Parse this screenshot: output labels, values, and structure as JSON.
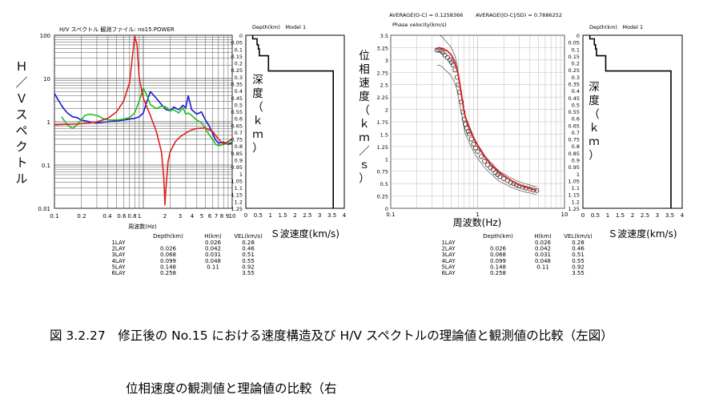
{
  "caption": {
    "line1": "図 3.2.27　修正後の No.15 における速度構造及び H/V スペクトルの理論値と観測値の比較（左図）",
    "line2": "位相速度の観測値と理論値の比較（右"
  },
  "chart_data": [
    {
      "type": "line",
      "title": "H/V スペクトル 観測ファイル: no15.POWER",
      "xlabel": "周波数(Hz)",
      "ylabel": "Ｈ／Ｖスペクトル",
      "xscale": "log",
      "yscale": "log",
      "xlim": [
        0.1,
        10
      ],
      "ylim": [
        0.01,
        100
      ],
      "x_ticks": [
        "0.1",
        "0.2",
        "0.4",
        "0.6",
        "0.8",
        "1",
        "2",
        "3",
        "4",
        "5",
        "6",
        "7",
        "8",
        "9",
        "10"
      ],
      "y_ticks": [
        "0.01",
        "0.1",
        "1",
        "10",
        "100"
      ],
      "grid": true,
      "series": [
        {
          "color": "#1a1acc",
          "x": [
            0.1,
            0.11,
            0.12,
            0.13,
            0.14,
            0.16,
            0.18,
            0.2,
            0.25,
            0.3,
            0.35,
            0.4,
            0.5,
            0.6,
            0.7,
            0.8,
            0.9,
            1.0,
            1.1,
            1.2,
            1.4,
            1.6,
            1.8,
            2.0,
            2.2,
            2.5,
            2.8,
            3.0,
            3.2,
            3.5,
            4.0,
            4.5,
            5.0,
            5.5,
            6.0,
            6.5,
            7.0,
            8.0,
            9.0,
            10.0
          ],
          "y": [
            4.5,
            3.2,
            2.4,
            1.9,
            1.6,
            1.3,
            1.25,
            1.1,
            1.0,
            0.95,
            0.98,
            1.0,
            1.05,
            1.1,
            1.15,
            1.2,
            1.3,
            1.6,
            3.0,
            5.0,
            3.5,
            2.5,
            1.9,
            1.8,
            2.2,
            1.9,
            2.4,
            2.1,
            4.0,
            1.9,
            1.5,
            1.7,
            1.1,
            0.8,
            0.55,
            0.38,
            0.32,
            0.34,
            0.3,
            0.32
          ]
        },
        {
          "color": "#22bb22",
          "x": [
            0.12,
            0.14,
            0.16,
            0.18,
            0.2,
            0.22,
            0.25,
            0.3,
            0.35,
            0.4,
            0.5,
            0.6,
            0.7,
            0.8,
            0.9,
            1.0,
            1.1,
            1.2,
            1.4,
            1.6,
            1.8,
            2.0,
            2.2,
            2.5,
            2.8,
            3.0,
            3.2,
            3.5,
            4.0,
            4.5,
            5.0,
            5.5,
            6.0,
            6.5,
            7.0,
            8.0,
            9.0,
            10.0
          ],
          "y": [
            1.3,
            0.85,
            0.7,
            0.85,
            1.1,
            1.4,
            1.5,
            1.4,
            1.2,
            1.1,
            1.1,
            1.15,
            1.25,
            1.6,
            3.0,
            6.0,
            4.0,
            2.5,
            2.0,
            2.3,
            2.2,
            1.8,
            1.9,
            1.6,
            2.1,
            1.5,
            1.6,
            1.4,
            1.1,
            0.95,
            0.7,
            0.5,
            0.4,
            0.3,
            0.28,
            0.3,
            0.32,
            0.34
          ]
        },
        {
          "color": "#e02020",
          "x": [
            0.1,
            0.2,
            0.3,
            0.4,
            0.5,
            0.6,
            0.7,
            0.8,
            0.85,
            0.9,
            1.0,
            1.2,
            1.4,
            1.6,
            1.7,
            1.75,
            1.8,
            1.9,
            2.0,
            2.3,
            2.6,
            3.0,
            3.5,
            4.0,
            5.0,
            6.0,
            7.0,
            8.0,
            9.0,
            10.0
          ],
          "y": [
            0.85,
            0.9,
            1.0,
            1.2,
            1.7,
            3.0,
            8.0,
            95,
            60,
            10,
            3.5,
            1.4,
            0.6,
            0.2,
            0.05,
            0.012,
            0.03,
            0.12,
            0.2,
            0.35,
            0.45,
            0.55,
            0.65,
            0.7,
            0.72,
            0.6,
            0.4,
            0.3,
            0.35,
            0.4
          ]
        }
      ]
    },
    {
      "type": "line",
      "title": "Depth(km)　Model 1",
      "ylabel": "深度（ｋｍ）",
      "xlabel": "Ｓ波速度(km/s)",
      "xlim": [
        0,
        4
      ],
      "ylim": [
        1.25,
        0
      ],
      "x_ticks": [
        "0",
        "0.5",
        "1",
        "1.5",
        "2",
        "2.5",
        "3",
        "3.5",
        "4"
      ],
      "y_ticks": [
        "0",
        "0.05",
        "0.1",
        "0.15",
        "0.2",
        "0.25",
        "0.3",
        "0.35",
        "0.4",
        "0.45",
        "0.5",
        "0.55",
        "0.6",
        "0.65",
        "0.7",
        "0.75",
        "0.8",
        "0.85",
        "0.9",
        "0.95",
        "1",
        "1.05",
        "1.1",
        "1.15",
        "1.2",
        "1.25"
      ],
      "series": [
        {
          "name": "Model 1",
          "color": "#000000",
          "velocity": [
            0.28,
            0.46,
            0.51,
            0.55,
            0.92,
            3.55
          ],
          "depth_top": [
            0,
            0.026,
            0.068,
            0.099,
            0.148,
            0.258
          ]
        }
      ]
    },
    {
      "type": "scatter",
      "annotations": [
        "AVERAGE(O-C) = 0.1258366",
        "AVERAGE(|O-C|/SD) = 0.7886252"
      ],
      "title": "Phase velocity(km/s)",
      "xlabel": "周波数(Hz)",
      "ylabel": "位相速度（ｋｍ／ｓ）",
      "xscale": "log",
      "xlim": [
        0.1,
        10
      ],
      "ylim": [
        0,
        3.5
      ],
      "x_ticks": [
        "0.1",
        "1",
        "10"
      ],
      "y_ticks": [
        "0",
        "0.25",
        "0.5",
        "0.75",
        "1",
        "1.25",
        "1.5",
        "1.75",
        "2",
        "2.25",
        "2.5",
        "2.75",
        "3",
        "3.25",
        "3.5"
      ],
      "grid": true,
      "series": [
        {
          "kind": "observed",
          "color": "#333333",
          "x": [
            0.34,
            0.36,
            0.38,
            0.4,
            0.42,
            0.45,
            0.48,
            0.5,
            0.52,
            0.55,
            0.58,
            0.6,
            0.62,
            0.65,
            0.68,
            0.7,
            0.72,
            0.75,
            0.78,
            0.8,
            0.85,
            0.9,
            0.95,
            1.0,
            1.1,
            1.2,
            1.3,
            1.4,
            1.5,
            1.6,
            1.7,
            1.8,
            2.0,
            2.2,
            2.4,
            2.6,
            2.8,
            3.0,
            3.3,
            3.6,
            4.0,
            4.4,
            4.8
          ],
          "y": [
            3.2,
            3.2,
            3.18,
            3.15,
            3.1,
            3.05,
            3.0,
            2.95,
            2.9,
            2.8,
            2.65,
            2.5,
            2.35,
            2.15,
            1.95,
            1.8,
            1.7,
            1.62,
            1.55,
            1.5,
            1.4,
            1.3,
            1.22,
            1.15,
            1.05,
            0.95,
            0.88,
            0.82,
            0.78,
            0.72,
            0.68,
            0.64,
            0.6,
            0.56,
            0.52,
            0.5,
            0.47,
            0.45,
            0.43,
            0.41,
            0.39,
            0.37,
            0.36
          ]
        },
        {
          "kind": "theoretical",
          "color": "#e02020",
          "x": [
            0.33,
            0.36,
            0.4,
            0.45,
            0.5,
            0.55,
            0.6,
            0.65,
            0.7,
            0.75,
            0.8,
            0.85,
            0.9,
            1.0,
            1.1,
            1.2,
            1.4,
            1.6,
            1.8,
            2.0,
            2.5,
            3.0,
            3.5,
            4.0,
            4.8
          ],
          "y": [
            3.22,
            3.25,
            3.23,
            3.18,
            3.1,
            2.95,
            2.7,
            2.3,
            1.95,
            1.75,
            1.62,
            1.52,
            1.42,
            1.28,
            1.15,
            1.05,
            0.9,
            0.8,
            0.72,
            0.66,
            0.55,
            0.48,
            0.43,
            0.4,
            0.36
          ]
        }
      ]
    },
    {
      "type": "line",
      "title": "Depth(km)　Model 1",
      "ylabel": "深度（ｋｍ）",
      "xlabel": "Ｓ波速度(km/s)",
      "xlim": [
        0,
        4
      ],
      "ylim": [
        1.25,
        0
      ],
      "x_ticks": [
        "0",
        "0.5",
        "1",
        "1.5",
        "2",
        "2.5",
        "3",
        "3.5",
        "4"
      ],
      "y_ticks": [
        "0",
        "0.05",
        "0.1",
        "0.15",
        "0.2",
        "0.25",
        "0.3",
        "0.35",
        "0.4",
        "0.45",
        "0.5",
        "0.55",
        "0.6",
        "0.65",
        "0.7",
        "0.75",
        "0.8",
        "0.85",
        "0.9",
        "0.95",
        "1",
        "1.05",
        "1.1",
        "1.15",
        "1.2",
        "1.25"
      ],
      "series": [
        {
          "name": "Model 1",
          "color": "#000000",
          "velocity": [
            0.28,
            0.46,
            0.51,
            0.55,
            0.92,
            3.55
          ],
          "depth_top": [
            0,
            0.026,
            0.068,
            0.099,
            0.148,
            0.258
          ]
        }
      ]
    }
  ],
  "layer_tables": [
    {
      "headers": [
        "",
        "Depth(km)",
        "H(km)",
        "VEL(km/s)"
      ],
      "rows": [
        [
          "1LAY",
          "",
          "0.026",
          "0.28"
        ],
        [
          "2LAY",
          "0.026",
          "0.042",
          "0.46"
        ],
        [
          "3LAY",
          "0.068",
          "0.031",
          "0.51"
        ],
        [
          "4LAY",
          "0.099",
          "0.048",
          "0.55"
        ],
        [
          "5LAY",
          "0.148",
          "0.11",
          "0.92"
        ],
        [
          "6LAY",
          "0.258",
          "",
          "3.55"
        ]
      ]
    },
    {
      "headers": [
        "",
        "Depth(km)",
        "H(km)",
        "VEL(km/s)"
      ],
      "rows": [
        [
          "1LAY",
          "",
          "0.026",
          "0.28"
        ],
        [
          "2LAY",
          "0.026",
          "0.042",
          "0.46"
        ],
        [
          "3LAY",
          "0.068",
          "0.031",
          "0.51"
        ],
        [
          "4LAY",
          "0.099",
          "0.048",
          "0.55"
        ],
        [
          "5LAY",
          "0.148",
          "0.11",
          "0.92"
        ],
        [
          "6LAY",
          "0.258",
          "",
          "3.55"
        ]
      ]
    }
  ]
}
